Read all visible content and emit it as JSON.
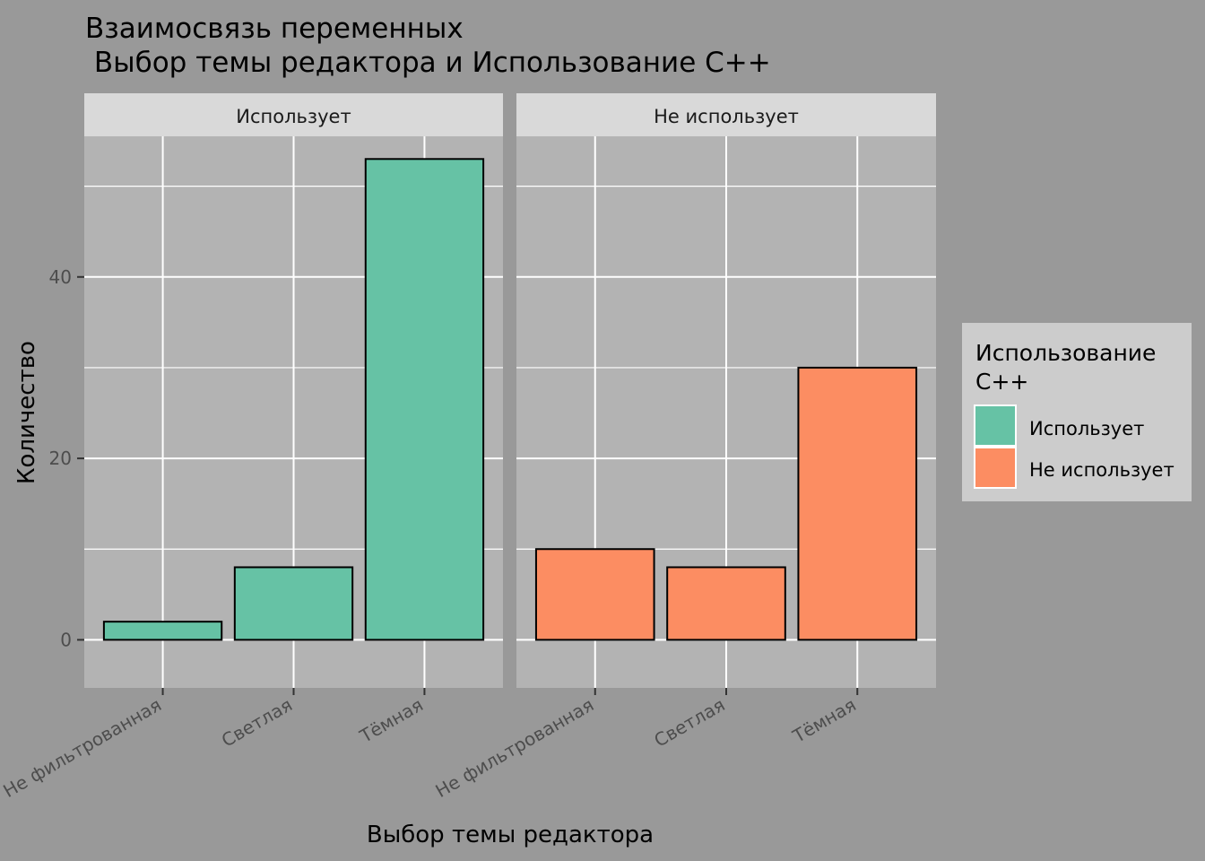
{
  "chart_data": {
    "type": "bar",
    "title_line1": "Взаимосвязь переменных",
    "title_line2": " Выбор темы редактора и Использование C++",
    "xlabel": "Выбор темы редактора",
    "ylabel": "Количество",
    "categories": [
      "Не фильтрованная",
      "Светлая",
      "Тёмная"
    ],
    "ylim": [
      -5.3,
      55.5
    ],
    "yticks": [
      0,
      20,
      40
    ],
    "grid": true,
    "facets": [
      {
        "label": "Использует",
        "series": "Использует",
        "values": [
          2,
          8,
          53
        ]
      },
      {
        "label": "Не использует",
        "series": "Не использует",
        "values": [
          10,
          8,
          30
        ]
      }
    ],
    "legend": {
      "title_line1": "Использование",
      "title_line2": "C++",
      "position": "right",
      "entries": [
        {
          "label": "Использует",
          "color": "#66c2a5"
        },
        {
          "label": "Не использует",
          "color": "#fc8d62"
        }
      ]
    }
  },
  "colors": {
    "background": "#999999",
    "panel": "#b3b3b3",
    "strip": "#d9d9d9",
    "legend_box": "#cccccc",
    "grid": "#ffffff",
    "bar_border": "#000000"
  }
}
